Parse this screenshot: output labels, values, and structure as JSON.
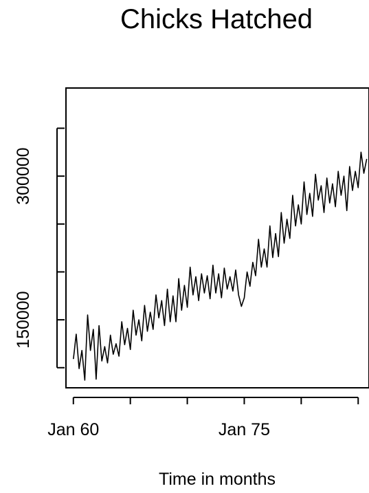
{
  "chart_data": {
    "type": "line",
    "title": "Chicks Hatched",
    "xlabel": "Time in months",
    "ylabel": "",
    "x_tick_labels": [
      {
        "year": 1960,
        "label": "Jan 60"
      },
      {
        "year": 1975,
        "label": "Jan 75"
      }
    ],
    "x_ticks_years": [
      1960,
      1965,
      1970,
      1975,
      1980,
      1985
    ],
    "y_ticks": [
      100000,
      150000,
      200000,
      250000,
      300000,
      350000
    ],
    "y_tick_labels": [
      {
        "value": 150000,
        "label": "150000"
      },
      {
        "value": 300000,
        "label": "300000"
      }
    ],
    "xlim": [
      1959.35,
      1985.95
    ],
    "ylim": [
      79000,
      392000
    ],
    "seasonal_peak_month_index": 3,
    "grid": false,
    "series": [
      {
        "color": "#000000",
        "points": [
          [
            1960.0,
            109000
          ],
          [
            1960.25,
            135000
          ],
          [
            1960.5,
            99000
          ],
          [
            1960.75,
            118000
          ],
          [
            1961.0,
            87000
          ],
          [
            1961.25,
            155000
          ],
          [
            1961.5,
            118000
          ],
          [
            1961.75,
            140000
          ],
          [
            1962.0,
            88000
          ],
          [
            1962.25,
            144000
          ],
          [
            1962.5,
            107000
          ],
          [
            1962.75,
            122000
          ],
          [
            1963.0,
            105000
          ],
          [
            1963.25,
            134000
          ],
          [
            1963.5,
            114000
          ],
          [
            1963.75,
            125000
          ],
          [
            1964.0,
            112000
          ],
          [
            1964.25,
            148000
          ],
          [
            1964.5,
            124000
          ],
          [
            1964.75,
            141000
          ],
          [
            1965.0,
            119000
          ],
          [
            1965.25,
            160000
          ],
          [
            1965.5,
            134000
          ],
          [
            1965.75,
            150000
          ],
          [
            1966.0,
            128000
          ],
          [
            1966.25,
            165000
          ],
          [
            1966.5,
            138000
          ],
          [
            1966.75,
            158000
          ],
          [
            1967.0,
            140000
          ],
          [
            1967.25,
            176000
          ],
          [
            1967.5,
            152000
          ],
          [
            1967.75,
            170000
          ],
          [
            1968.0,
            144000
          ],
          [
            1968.25,
            182000
          ],
          [
            1968.5,
            148000
          ],
          [
            1968.75,
            175000
          ],
          [
            1969.0,
            148000
          ],
          [
            1969.25,
            193000
          ],
          [
            1969.5,
            160000
          ],
          [
            1969.75,
            186000
          ],
          [
            1970.0,
            163000
          ],
          [
            1970.25,
            205000
          ],
          [
            1970.5,
            176000
          ],
          [
            1970.75,
            195000
          ],
          [
            1971.0,
            170000
          ],
          [
            1971.25,
            198000
          ],
          [
            1971.5,
            178000
          ],
          [
            1971.75,
            196000
          ],
          [
            1972.0,
            172000
          ],
          [
            1972.25,
            207000
          ],
          [
            1972.5,
            178000
          ],
          [
            1972.75,
            198000
          ],
          [
            1973.0,
            173000
          ],
          [
            1973.25,
            204000
          ],
          [
            1973.5,
            182000
          ],
          [
            1973.75,
            195000
          ],
          [
            1974.0,
            180000
          ],
          [
            1974.25,
            202000
          ],
          [
            1974.5,
            176000
          ],
          [
            1974.75,
            164000
          ],
          [
            1975.0,
            173000
          ],
          [
            1975.25,
            200000
          ],
          [
            1975.5,
            185000
          ],
          [
            1975.75,
            210000
          ],
          [
            1976.0,
            196000
          ],
          [
            1976.25,
            234000
          ],
          [
            1976.5,
            205000
          ],
          [
            1976.75,
            224000
          ],
          [
            1977.0,
            205000
          ],
          [
            1977.25,
            248000
          ],
          [
            1977.5,
            215000
          ],
          [
            1977.75,
            240000
          ],
          [
            1978.0,
            216000
          ],
          [
            1978.25,
            262000
          ],
          [
            1978.5,
            230000
          ],
          [
            1978.75,
            255000
          ],
          [
            1979.0,
            235000
          ],
          [
            1979.25,
            280000
          ],
          [
            1979.5,
            248000
          ],
          [
            1979.75,
            270000
          ],
          [
            1980.0,
            250000
          ],
          [
            1980.25,
            294000
          ],
          [
            1980.5,
            260000
          ],
          [
            1980.75,
            282000
          ],
          [
            1981.0,
            258000
          ],
          [
            1981.25,
            302000
          ],
          [
            1981.5,
            275000
          ],
          [
            1981.75,
            290000
          ],
          [
            1982.0,
            262000
          ],
          [
            1982.25,
            298000
          ],
          [
            1982.5,
            272000
          ],
          [
            1982.75,
            292000
          ],
          [
            1983.0,
            268000
          ],
          [
            1983.25,
            305000
          ],
          [
            1983.5,
            280000
          ],
          [
            1983.75,
            300000
          ],
          [
            1984.0,
            264000
          ],
          [
            1984.25,
            310000
          ],
          [
            1984.5,
            285000
          ],
          [
            1984.75,
            305000
          ],
          [
            1985.0,
            288000
          ],
          [
            1985.25,
            325000
          ],
          [
            1985.5,
            303000
          ],
          [
            1985.75,
            318000
          ]
        ]
      }
    ]
  }
}
